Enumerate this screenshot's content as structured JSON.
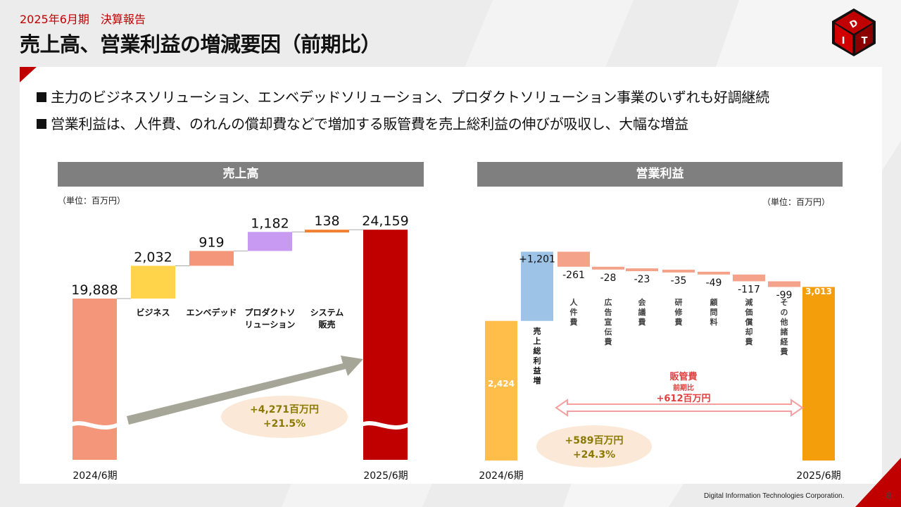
{
  "header": {
    "subtitle": "2025年6月期　決算報告",
    "title": "売上高、営業利益の増減要因（前期比）"
  },
  "bullets": [
    "主力のビジネスソリューション、エンベデッドソリューション、プロダクトソリューション事業のいずれも好調継続",
    "営業利益は、人件費、のれんの償却費などで増加する販管費を売上総利益の伸びが吸収し、大幅な増益"
  ],
  "footer": {
    "company": "Digital Information Technologies Corporation.",
    "page": "8"
  },
  "colors": {
    "accent": "#c00000",
    "band": "#7f7f7f"
  },
  "chart_data": [
    {
      "type": "bar",
      "title": "売上高",
      "unit": "（単位：百万円）",
      "broken_axis": true,
      "categories": [
        "2024/6期",
        "ビジネス",
        "エンベデッド",
        "プロダクトソ\nリューション",
        "システム\n販売",
        "2025/6期"
      ],
      "category_labels": [
        "",
        "ビジネス",
        "エンベデッド",
        "プロダクトソ|リューション",
        "システム|販売",
        ""
      ],
      "x_labels": {
        "start": "2024/6期",
        "end": "2025/6期"
      },
      "values": [
        19888,
        2032,
        919,
        1182,
        138,
        24159
      ],
      "value_labels": [
        "19,888",
        "2,032",
        "919",
        "1,182",
        "138",
        "24,159"
      ],
      "bar_colors": [
        "#f4967a",
        "#ffd44a",
        "#f4967a",
        "#c99af2",
        "#f07f30",
        "#c00000"
      ],
      "annotation": {
        "line1": "+4,271百万円",
        "line2": "+21.5%"
      }
    },
    {
      "type": "bar",
      "title": "営業利益",
      "unit": "（単位：百万円）",
      "broken_axis": false,
      "categories": [
        "2024/6期",
        "売上総利益増",
        "人件費",
        "広告宣伝費",
        "会議費",
        "研修費",
        "顧問料",
        "減価償却費",
        "その他諸経費",
        "2025/6期"
      ],
      "category_labels": [
        "",
        "売上総利益増",
        "人件費",
        "広告宣伝費",
        "会議費",
        "研修費",
        "顧問料",
        "減価償却費",
        "その他諸経費",
        ""
      ],
      "x_labels": {
        "start": "2024/6期",
        "end": "2025/6期"
      },
      "values": [
        2424,
        1201,
        -261,
        -28,
        -23,
        -35,
        -49,
        -117,
        -99,
        3013
      ],
      "value_labels": [
        "2,424",
        "+1,201",
        "-261",
        "-28",
        "-23",
        "-35",
        "-49",
        "-117",
        "-99",
        "3,013"
      ],
      "bar_colors": [
        "#ffbd4a",
        "#9dc3e6",
        "#f4a38a",
        "#f4a38a",
        "#f4a38a",
        "#f4a38a",
        "#f4a38a",
        "#f4a38a",
        "#f4a38a",
        "#f59e0b"
      ],
      "sga_annotation": {
        "line1": "販管費",
        "line2": "前期比",
        "line3": "+612百万円"
      },
      "annotation": {
        "line1": "+589百万円",
        "line2": "+24.3%"
      }
    }
  ]
}
